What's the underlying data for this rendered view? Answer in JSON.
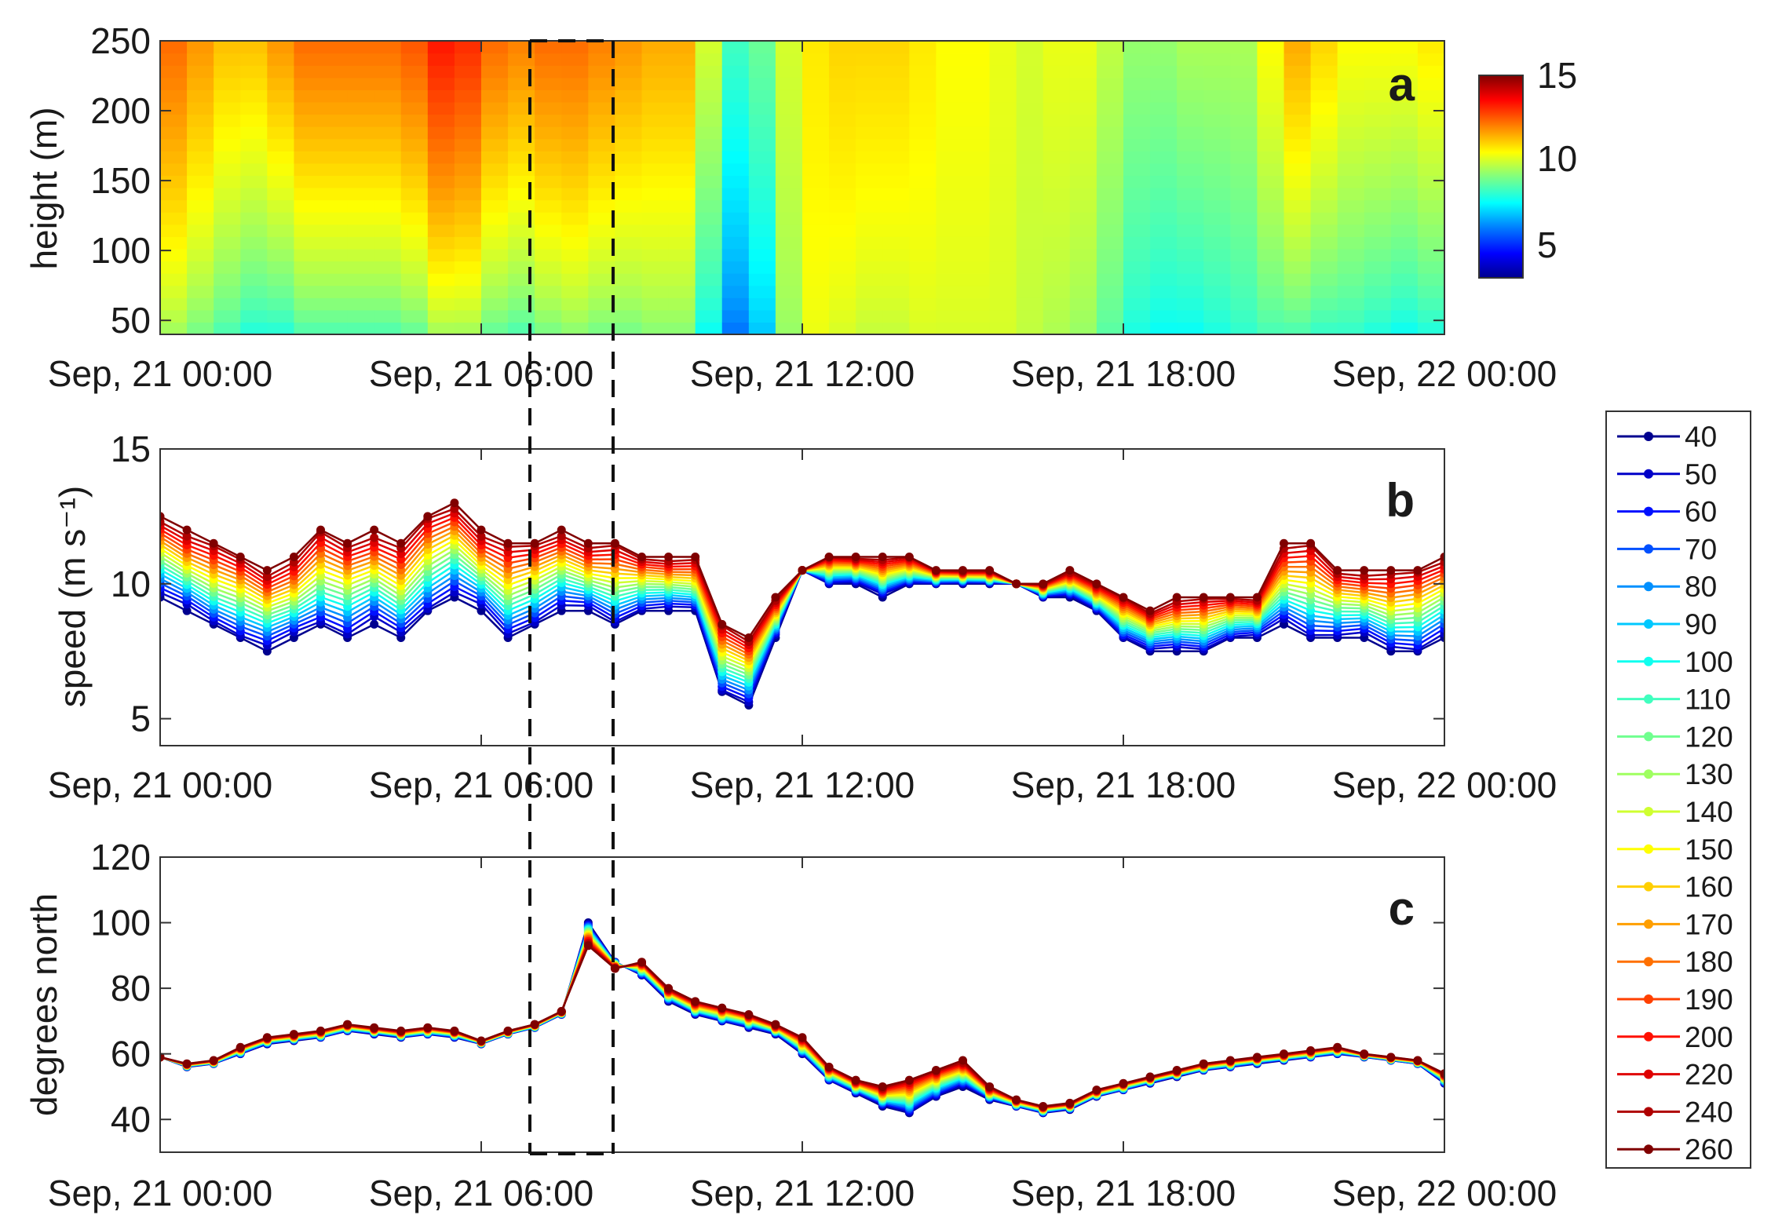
{
  "figure_title": "",
  "colors": {
    "axis": "#333333",
    "box": "#000000",
    "dash_box": "#111111",
    "height_colormap": [
      "#00008f",
      "#0000ff",
      "#0080ff",
      "#00ffff",
      "#80ff80",
      "#ffff00",
      "#ff8000",
      "#ff0000",
      "#800000"
    ]
  },
  "colorbar": {
    "label_max": "15",
    "label_mid": "10",
    "label_min": "5",
    "range": [
      3,
      15
    ]
  },
  "legend": {
    "items": [
      {
        "label": "40",
        "color": "#00008f"
      },
      {
        "label": "50",
        "color": "#0000c8"
      },
      {
        "label": "60",
        "color": "#0010ff"
      },
      {
        "label": "70",
        "color": "#0050ff"
      },
      {
        "label": "80",
        "color": "#0090ff"
      },
      {
        "label": "90",
        "color": "#00c8ff"
      },
      {
        "label": "100",
        "color": "#10ffef"
      },
      {
        "label": "110",
        "color": "#40ffbf"
      },
      {
        "label": "120",
        "color": "#70ff8f"
      },
      {
        "label": "130",
        "color": "#9fff60"
      },
      {
        "label": "140",
        "color": "#cfff30"
      },
      {
        "label": "150",
        "color": "#ffff00"
      },
      {
        "label": "160",
        "color": "#ffcf00"
      },
      {
        "label": "170",
        "color": "#ff9f00"
      },
      {
        "label": "180",
        "color": "#ff7000"
      },
      {
        "label": "190",
        "color": "#ff4000"
      },
      {
        "label": "200",
        "color": "#ff1000"
      },
      {
        "label": "220",
        "color": "#df0000"
      },
      {
        "label": "240",
        "color": "#af0000"
      },
      {
        "label": "260",
        "color": "#800000"
      }
    ]
  },
  "chart_data": [
    {
      "type": "heatmap",
      "panel": "a",
      "title": "",
      "xlabel": "",
      "ylabel": "height (m)",
      "x_ticks": [
        "Sep, 21 00:00",
        "Sep, 21 06:00",
        "Sep, 21 12:00",
        "Sep, 21 18:00",
        "Sep, 22 00:00"
      ],
      "y_ticks": [
        "50",
        "100",
        "150",
        "200",
        "250"
      ],
      "x_range_hours": [
        0,
        24
      ],
      "y_range": [
        40,
        250
      ],
      "color_range": [
        3,
        15
      ],
      "time_hours": [
        0,
        0.5,
        1,
        1.5,
        2,
        2.5,
        3,
        3.5,
        4,
        4.5,
        5,
        5.5,
        6,
        6.5,
        7,
        7.5,
        8,
        8.5,
        9,
        9.5,
        10,
        10.5,
        11,
        11.5,
        12,
        12.5,
        13,
        13.5,
        14,
        14.5,
        15,
        15.5,
        16,
        16.5,
        17,
        17.5,
        18,
        18.5,
        19,
        19.5,
        20,
        20.5,
        21,
        21.5,
        22,
        22.5,
        23,
        23.5,
        24
      ],
      "heights": [
        40,
        80,
        120,
        160,
        200,
        250
      ],
      "speed_at_40m": [
        9.5,
        9,
        8.5,
        8,
        7.5,
        8,
        8.5,
        8,
        8.5,
        8,
        9,
        9.5,
        9,
        8,
        8.5,
        9,
        9,
        8.5,
        9,
        9,
        9,
        6,
        5.5,
        8,
        10.5,
        10,
        10,
        9.5,
        10,
        10,
        10,
        10,
        10,
        9.5,
        9.5,
        9,
        8,
        7.5,
        7.5,
        7.5,
        8,
        8,
        8.5,
        8,
        8,
        8,
        7.5,
        7.5,
        8
      ],
      "speed_at_250m": [
        12.5,
        12,
        11.5,
        11,
        11.5,
        12,
        12.5,
        12,
        12.5,
        12,
        13,
        13.5,
        12.5,
        12,
        12,
        12.5,
        12,
        12,
        11.5,
        11.5,
        11.5,
        8.5,
        8,
        9.5,
        10.5,
        11,
        11,
        11,
        11,
        10.5,
        10.5,
        10.5,
        10,
        10,
        10.5,
        10,
        9.5,
        9,
        9.5,
        9.5,
        9.5,
        9.5,
        11.5,
        11.5,
        10.5,
        10.5,
        10.5,
        10.5,
        11
      ],
      "annotation": "a"
    },
    {
      "type": "line",
      "panel": "b",
      "title": "",
      "xlabel": "",
      "ylabel": "speed (m s⁻¹)",
      "x_ticks": [
        "Sep, 21 00:00",
        "Sep, 21 06:00",
        "Sep, 21 12:00",
        "Sep, 21 18:00",
        "Sep, 22 00:00"
      ],
      "y_ticks": [
        "5",
        "10",
        "15"
      ],
      "x_range_hours": [
        0,
        24
      ],
      "ylim": [
        4,
        15
      ],
      "x_hours": [
        0,
        0.5,
        1,
        1.5,
        2,
        2.5,
        3,
        3.5,
        4,
        4.5,
        5,
        5.5,
        6,
        6.5,
        7,
        7.5,
        8,
        8.5,
        9,
        9.5,
        10,
        10.5,
        11,
        11.5,
        12,
        12.5,
        13,
        13.5,
        14,
        14.5,
        15,
        15.5,
        16,
        16.5,
        17,
        17.5,
        18,
        18.5,
        19,
        19.5,
        20,
        20.5,
        21,
        21.5,
        22,
        22.5,
        23,
        23.5,
        24
      ],
      "series_low": {
        "name": "40",
        "values": [
          9.5,
          9,
          8.5,
          8,
          7.5,
          8,
          8.5,
          8,
          8.5,
          8,
          9,
          9.5,
          9,
          8,
          8.5,
          9,
          9,
          8.5,
          9,
          9,
          9,
          6,
          5.5,
          8,
          10.5,
          10,
          10,
          9.5,
          10,
          10,
          10,
          10,
          10,
          9.5,
          9.5,
          9,
          8,
          7.5,
          7.5,
          7.5,
          8,
          8,
          8.5,
          8,
          8,
          8,
          7.5,
          7.5,
          8
        ]
      },
      "series_high": {
        "name": "260",
        "values": [
          12.5,
          12,
          11.5,
          11,
          10.5,
          11,
          12,
          11.5,
          12,
          11.5,
          12.5,
          13,
          12,
          11.5,
          11.5,
          12,
          11.5,
          11.5,
          11,
          11,
          11,
          8.5,
          8,
          9.5,
          10.5,
          11,
          11,
          11,
          11,
          10.5,
          10.5,
          10.5,
          10,
          10,
          10.5,
          10,
          9.5,
          9,
          9.5,
          9.5,
          9.5,
          9.5,
          11.5,
          11.5,
          10.5,
          10.5,
          10.5,
          10.5,
          11
        ]
      },
      "annotation": "b"
    },
    {
      "type": "line",
      "panel": "c",
      "title": "",
      "xlabel": "",
      "ylabel": "degrees north",
      "x_ticks": [
        "Sep, 21 00:00",
        "Sep, 21 06:00",
        "Sep, 21 12:00",
        "Sep, 21 18:00",
        "Sep, 22 00:00"
      ],
      "y_ticks": [
        "40",
        "60",
        "80",
        "100",
        "120"
      ],
      "x_range_hours": [
        0,
        24
      ],
      "ylim": [
        30,
        120
      ],
      "x_hours": [
        0,
        0.5,
        1,
        1.5,
        2,
        2.5,
        3,
        3.5,
        4,
        4.5,
        5,
        5.5,
        6,
        6.5,
        7,
        7.5,
        8,
        8.5,
        9,
        9.5,
        10,
        10.5,
        11,
        11.5,
        12,
        12.5,
        13,
        13.5,
        14,
        14.5,
        15,
        15.5,
        16,
        16.5,
        17,
        17.5,
        18,
        18.5,
        19,
        19.5,
        20,
        20.5,
        21,
        21.5,
        22,
        22.5,
        23,
        23.5,
        24
      ],
      "series_low": {
        "name": "40",
        "values": [
          59,
          56,
          57,
          60,
          63,
          64,
          65,
          67,
          66,
          65,
          66,
          65,
          63,
          66,
          68,
          72,
          100,
          88,
          84,
          76,
          72,
          70,
          68,
          66,
          60,
          52,
          48,
          44,
          42,
          47,
          50,
          46,
          44,
          42,
          43,
          47,
          49,
          51,
          53,
          55,
          56,
          57,
          58,
          59,
          60,
          59,
          58,
          57,
          51
        ]
      },
      "series_high": {
        "name": "260",
        "values": [
          59,
          57,
          58,
          62,
          65,
          66,
          67,
          69,
          68,
          67,
          68,
          67,
          64,
          67,
          69,
          73,
          93,
          86,
          88,
          80,
          76,
          74,
          72,
          69,
          65,
          56,
          52,
          50,
          52,
          55,
          58,
          50,
          46,
          44,
          45,
          49,
          51,
          53,
          55,
          57,
          58,
          59,
          60,
          61,
          62,
          60,
          59,
          58,
          54
        ]
      },
      "annotation": "c"
    }
  ]
}
